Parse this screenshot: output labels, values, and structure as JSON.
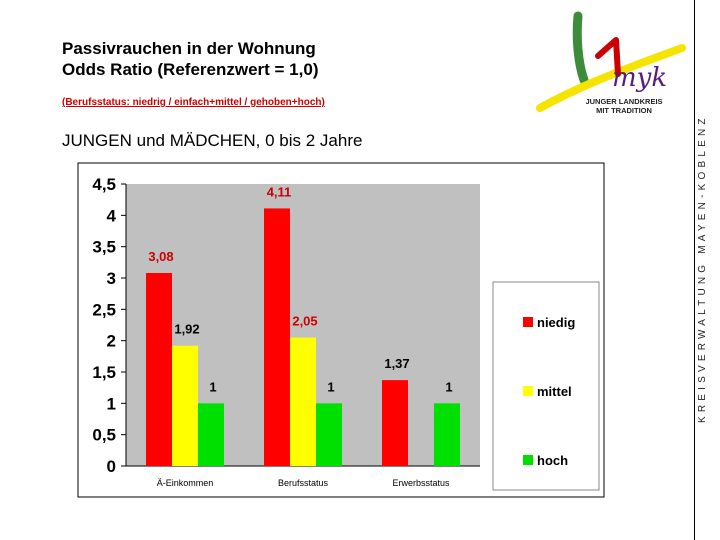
{
  "header": {
    "title_line1": "Passivrauchen in der Wohnung",
    "title_line2": "Odds Ratio (Referenzwert = 1,0)",
    "subtitle": "(Berufsstatus: niedrig / einfach+mittel / gehoben+hoch)",
    "heading": "JUNGEN und MÄDCHEN, 0 bis 2 Jahre"
  },
  "logo": {
    "text_line1": "JUNGER LANDKREIS",
    "text_line2": "MIT TRADITION",
    "colors": {
      "green": "#3c8c3c",
      "yellow": "#f5e400",
      "purple": "#5a1a7a",
      "red": "#cc0000"
    }
  },
  "sidebar_text": "KREISVERWALTUNG MAYEN-KOBLENZ",
  "chart_data": {
    "type": "bar",
    "categories": [
      "Ä-Einkommen",
      "Berufsstatus",
      "Erwerbsstatus"
    ],
    "series": [
      {
        "name": "niedig",
        "values": [
          3.08,
          4.11,
          1.37
        ],
        "labels": [
          "3,08",
          "4,11",
          "1,37"
        ],
        "color": "#ff0000",
        "label_color": "#cc0000"
      },
      {
        "name": "mittel",
        "values": [
          1.92,
          2.05,
          null
        ],
        "labels": [
          "1,92",
          "2,05",
          ""
        ],
        "color": "#ffff00",
        "label_color": "#000000"
      },
      {
        "name": "hoch",
        "values": [
          1,
          1,
          1
        ],
        "labels": [
          "1",
          "1",
          "1"
        ],
        "color": "#00e000",
        "label_color": "#000000"
      }
    ],
    "label_colors_per_point": [
      [
        "#cc0000",
        "#cc0000",
        "#000000"
      ],
      [
        "#000000",
        "#cc0000",
        "#000000"
      ],
      [
        "#000000",
        "#000000",
        "#000000"
      ]
    ],
    "yticks": [
      0,
      0.5,
      1,
      1.5,
      2,
      2.5,
      3,
      3.5,
      4,
      4.5
    ],
    "ytick_labels": [
      "0",
      "0,5",
      "1",
      "1,5",
      "2",
      "2,5",
      "3",
      "3,5",
      "4",
      "4,5"
    ],
    "ylim": [
      0,
      4.5
    ],
    "grid": false,
    "legend_position": "right",
    "plot_background": "#c0c0c0"
  }
}
